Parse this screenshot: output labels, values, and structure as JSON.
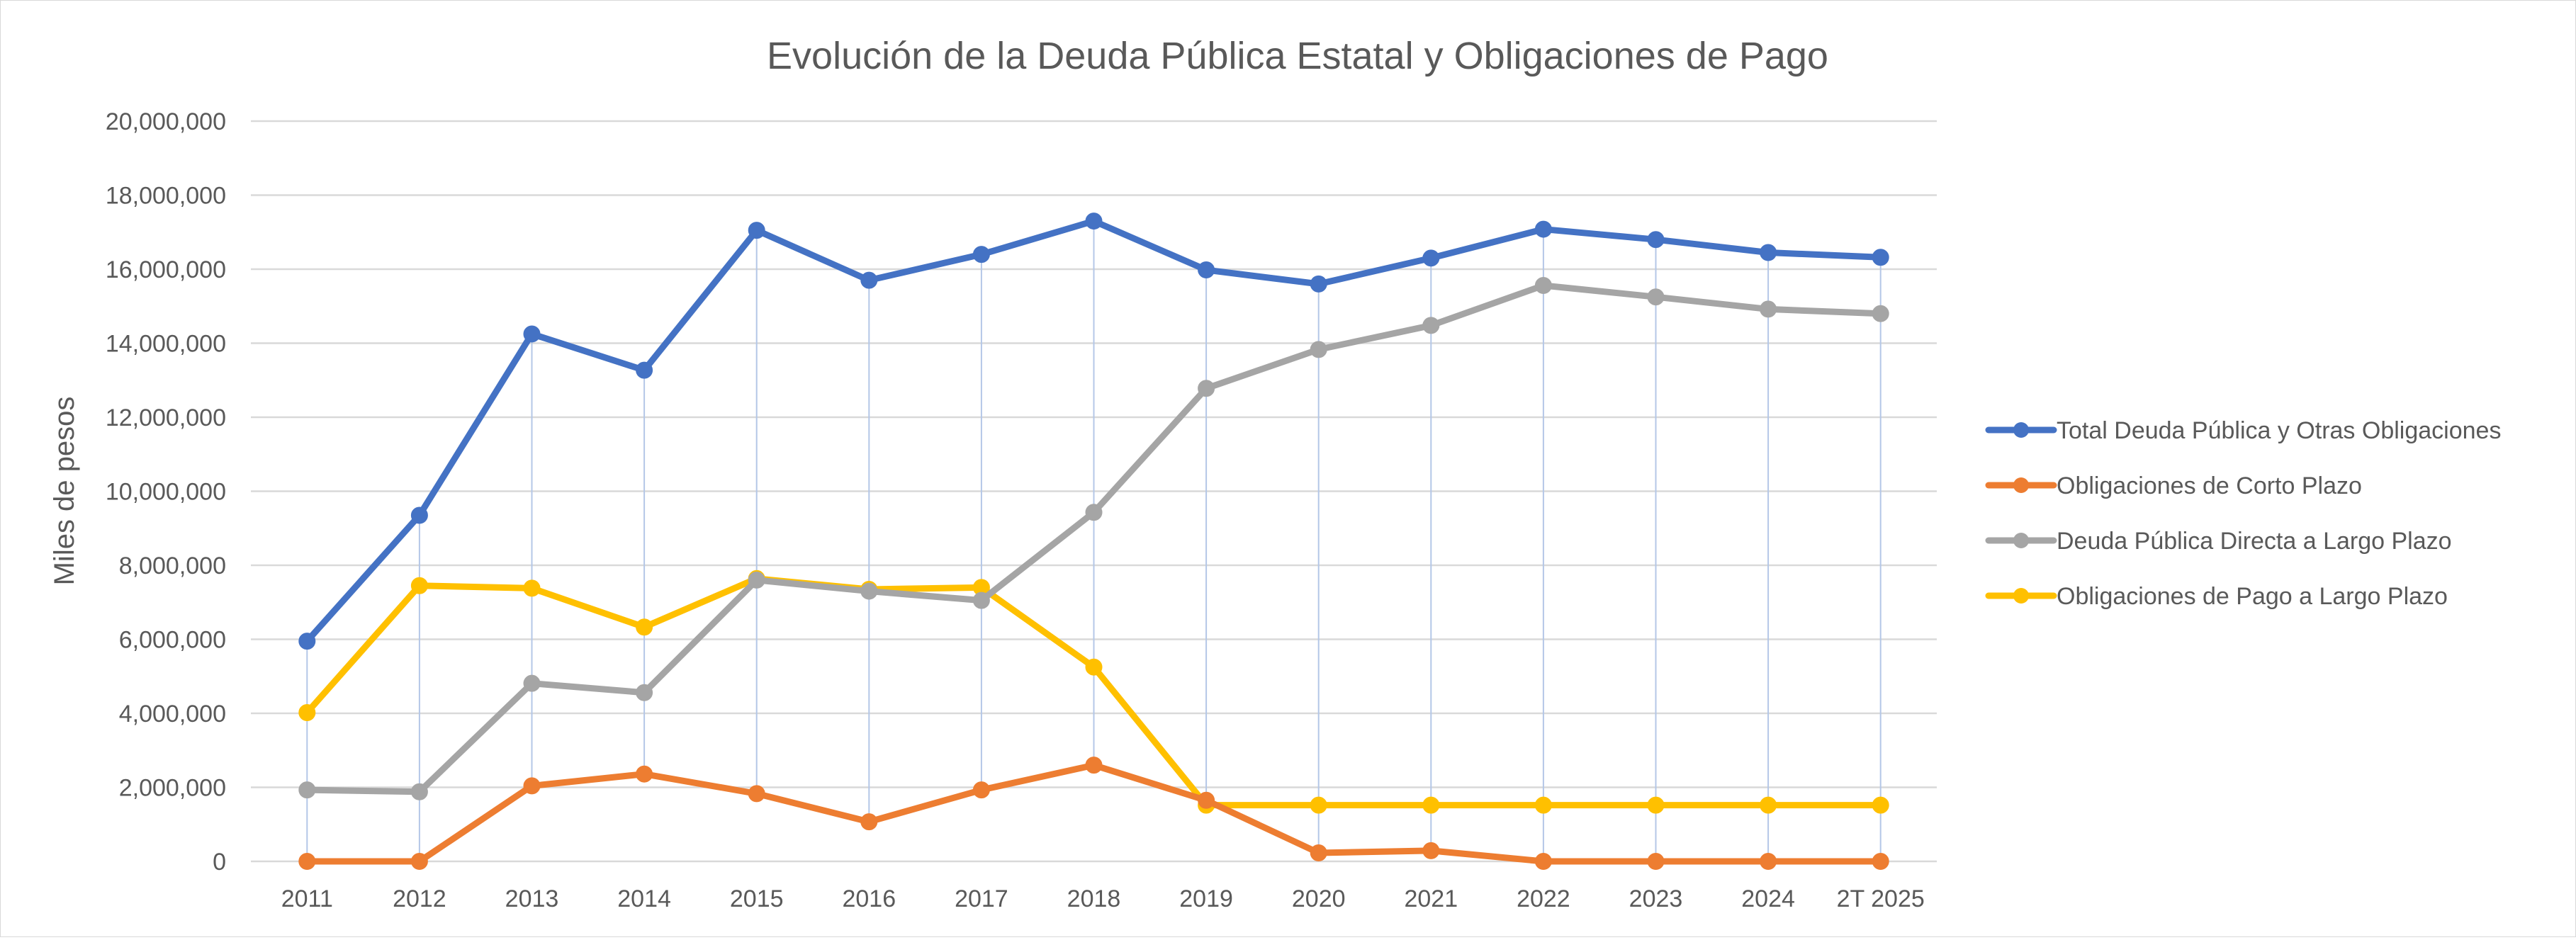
{
  "chart_data": {
    "type": "line",
    "title": "Evolución de la Deuda Pública Estatal y Obligaciones de Pago",
    "xlabel": "",
    "ylabel": "Miles de pesos",
    "ylim": [
      0,
      20000000
    ],
    "ytick_step": 2000000,
    "ytick_labels": [
      "0",
      "2,000,000",
      "4,000,000",
      "6,000,000",
      "8,000,000",
      "10,000,000",
      "12,000,000",
      "14,000,000",
      "16,000,000",
      "18,000,000",
      "20,000,000"
    ],
    "grid": true,
    "high_low_lines": true,
    "legend_position": "right",
    "categories": [
      "2011",
      "2012",
      "2013",
      "2014",
      "2015",
      "2016",
      "2017",
      "2018",
      "2019",
      "2020",
      "2021",
      "2022",
      "2023",
      "2024",
      "2T 2025"
    ],
    "series": [
      {
        "name": "Total Deuda Pública y Otras Obligaciones",
        "color": "#4472c4",
        "values": [
          5950000,
          9350000,
          14250000,
          13270000,
          17050000,
          15700000,
          16400000,
          17300000,
          15980000,
          15600000,
          16300000,
          17080000,
          16800000,
          16450000,
          16320000
        ]
      },
      {
        "name": "Obligaciones de Corto Plazo",
        "color": "#ed7d31",
        "values": [
          0,
          0,
          2040000,
          2360000,
          1830000,
          1070000,
          1930000,
          2600000,
          1650000,
          230000,
          290000,
          0,
          0,
          0,
          0
        ]
      },
      {
        "name": "Deuda Pública Directa a Largo Plazo",
        "color": "#a5a5a5",
        "values": [
          1930000,
          1880000,
          4810000,
          4560000,
          7600000,
          7300000,
          7050000,
          9430000,
          12780000,
          13830000,
          14480000,
          15560000,
          15250000,
          14920000,
          14800000
        ]
      },
      {
        "name": "Obligaciones de Pago a Largo Plazo",
        "color": "#ffc000",
        "values": [
          4020000,
          7450000,
          7380000,
          6330000,
          7640000,
          7350000,
          7400000,
          5250000,
          1520000,
          1520000,
          1520000,
          1520000,
          1520000,
          1520000,
          1520000
        ]
      }
    ]
  }
}
